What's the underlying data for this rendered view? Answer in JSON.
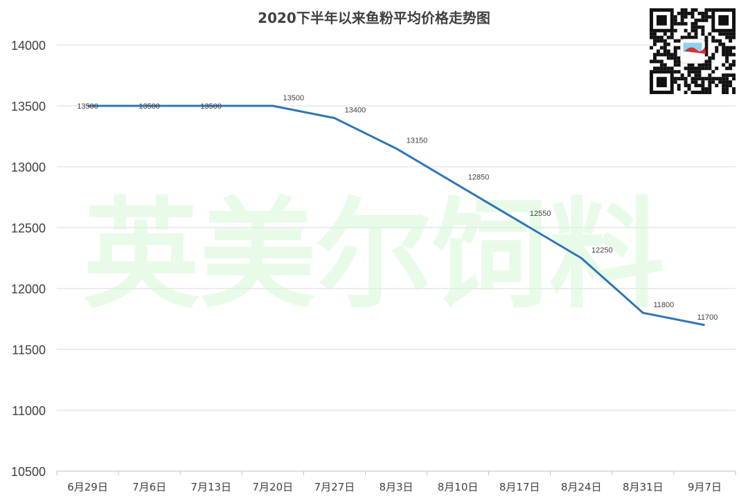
{
  "chart_data": {
    "type": "line",
    "title": "2020下半年以来鱼粉平均价格走势图",
    "categories": [
      "6月29日",
      "7月6日",
      "7月13日",
      "7月20日",
      "7月27日",
      "8月3日",
      "8月10日",
      "8月17日",
      "8月24日",
      "8月31日",
      "9月7日"
    ],
    "series": [
      {
        "values": [
          13500,
          13500,
          13500,
          13500,
          13400,
          13150,
          12850,
          12550,
          12250,
          11800,
          11700
        ]
      }
    ],
    "data_labels": [
      "13500",
      "13500",
      "13500",
      "13500",
      "13400",
      "13150",
      "12850",
      "12550",
      "12250",
      "11800",
      "11700"
    ],
    "ylim": [
      10500,
      14000
    ],
    "yticks": [
      10500,
      11000,
      11500,
      12000,
      12500,
      13000,
      13500,
      14000
    ],
    "ytick_labels": [
      "10500",
      "11000",
      "11500",
      "12000",
      "12500",
      "13000",
      "13500",
      "14000"
    ],
    "grid": true,
    "line_color": "#2e75b6",
    "grid_color": "#d9d9d9",
    "watermark": "英美尔饲料",
    "watermark_color": "#d6f7d6",
    "qr_badge_icon": "qr-code-icon"
  }
}
